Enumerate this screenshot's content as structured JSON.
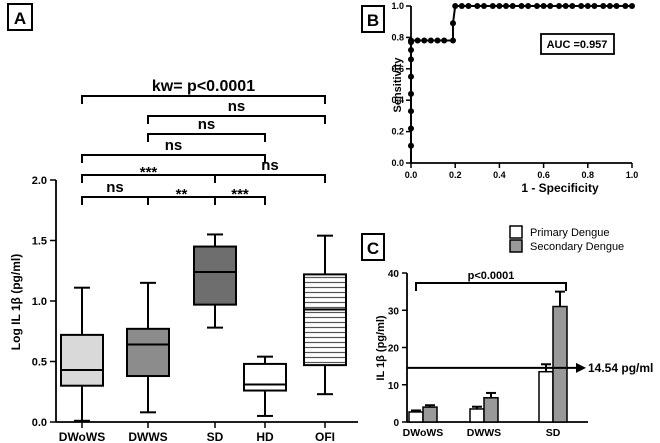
{
  "chart_data": [
    {
      "panel": "A",
      "type": "box",
      "ylabel": "Log IL 1β (pg/ml)",
      "ylim": [
        0,
        2.0
      ],
      "yticks": [
        "0.0",
        "0.5",
        "1.0",
        "1.5",
        "2.0"
      ],
      "categories": [
        "DWoWS",
        "DWWS",
        "SD",
        "HD",
        "OFI"
      ],
      "colors": [
        "#d9d9d9",
        "#8c8c8c",
        "#6e6e6e",
        "#ffffff",
        "#ffffff"
      ],
      "hatched": [
        false,
        false,
        false,
        false,
        true
      ],
      "boxes": [
        {
          "min": 0.01,
          "q1": 0.3,
          "median": 0.43,
          "q3": 0.72,
          "max": 1.11
        },
        {
          "min": 0.08,
          "q1": 0.38,
          "median": 0.64,
          "q3": 0.77,
          "max": 1.15
        },
        {
          "min": 0.78,
          "q1": 0.97,
          "median": 1.24,
          "q3": 1.45,
          "max": 1.55
        },
        {
          "min": 0.05,
          "q1": 0.26,
          "median": 0.31,
          "q3": 0.48,
          "max": 0.54
        },
        {
          "min": 0.23,
          "q1": 0.47,
          "median": 0.93,
          "q3": 1.22,
          "max": 1.54
        }
      ],
      "brackets": [
        {
          "from": 0,
          "to": 4,
          "label": "kw= p<0.0001"
        },
        {
          "from": 1,
          "to": 4,
          "label": "ns"
        },
        {
          "from": 1,
          "to": 3,
          "label": "ns"
        },
        {
          "from": 0,
          "to": 3,
          "label": "ns"
        },
        {
          "from": 0,
          "to": 2,
          "label": "***"
        },
        {
          "from": 2,
          "to": 4,
          "label": "ns"
        },
        {
          "from": 0,
          "to": 1,
          "label": "ns"
        },
        {
          "from": 1,
          "to": 2,
          "label": "**"
        },
        {
          "from": 2,
          "to": 3,
          "label": "***"
        }
      ]
    },
    {
      "panel": "B",
      "type": "line",
      "title": "",
      "xlabel": "1 - Specificity",
      "ylabel": "Sensitivity",
      "xlim": [
        0,
        1.0
      ],
      "ylim": [
        0,
        1.0
      ],
      "xticks": [
        "0.0",
        "0.2",
        "0.4",
        "0.6",
        "0.8",
        "1.0"
      ],
      "yticks": [
        "0.0",
        "0.2",
        "0.4",
        "0.6",
        "0.8",
        "1.0"
      ],
      "annotation": "AUC =0.957",
      "x": [
        0,
        0,
        0,
        0,
        0,
        0,
        0,
        0,
        0,
        0.03,
        0.06,
        0.09,
        0.12,
        0.15,
        0.19,
        0.19,
        0.2,
        0.23,
        0.26,
        0.3,
        0.33,
        0.37,
        0.4,
        0.43,
        0.46,
        0.5,
        0.53,
        0.57,
        0.6,
        0.63,
        0.67,
        0.7,
        0.73,
        0.77,
        0.8,
        0.83,
        0.87,
        0.9,
        0.93,
        0.97,
        1.0
      ],
      "y": [
        0.11,
        0.22,
        0.33,
        0.44,
        0.55,
        0.66,
        0.72,
        0.77,
        0.78,
        0.78,
        0.78,
        0.78,
        0.78,
        0.78,
        0.78,
        0.89,
        1,
        1,
        1,
        1,
        1,
        1,
        1,
        1,
        1,
        1,
        1,
        1,
        1,
        1,
        1,
        1,
        1,
        1,
        1,
        1,
        1,
        1,
        1,
        1,
        1
      ]
    },
    {
      "panel": "C",
      "type": "bar",
      "ylabel": "IL 1β (pg/ml)",
      "ylim": [
        0,
        40
      ],
      "yticks": [
        "0",
        "10",
        "20",
        "30",
        "40"
      ],
      "categories": [
        "DWoWS",
        "DWWS",
        "SD"
      ],
      "series": [
        {
          "name": "Primary Dengue",
          "color": "#ffffff",
          "values": [
            2.7,
            3.5,
            13.5
          ],
          "errors": [
            0.4,
            0.6,
            2.0
          ]
        },
        {
          "name": "Secondary Dengue",
          "color": "#999999",
          "values": [
            4.0,
            6.5,
            31.0
          ],
          "errors": [
            0.5,
            1.3,
            4.0
          ]
        }
      ],
      "threshold": {
        "value": 14.54,
        "label": "14.54 pg/ml"
      },
      "significance": "p<0.0001"
    }
  ]
}
